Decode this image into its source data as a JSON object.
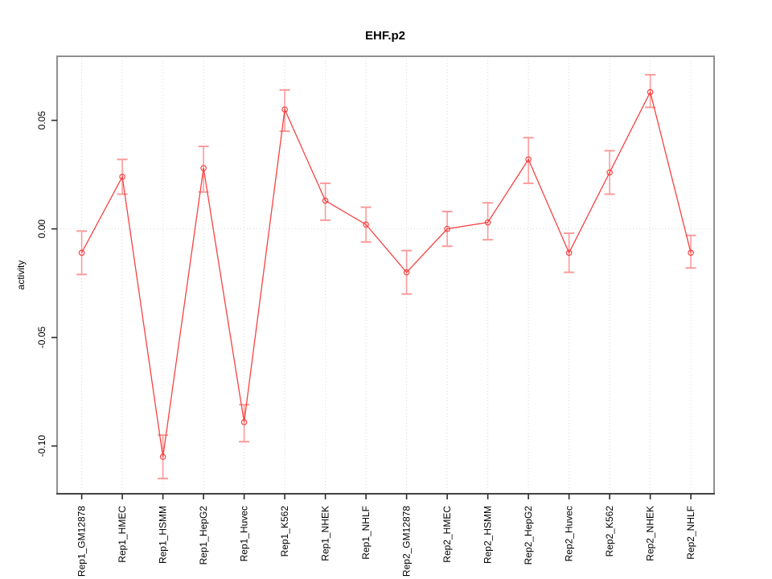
{
  "title": "EHF.p2",
  "colors": {
    "series_line": "#f54242",
    "marker_stroke": "#f54242",
    "error_bar": "#fb9b9b",
    "gridline": "#d8d8d8",
    "plot_border": "#8f8f8f",
    "axis": "#2b2b2b",
    "text": "#000000",
    "background": "#ffffff"
  },
  "chart_data": {
    "type": "line",
    "title": "EHF.p2",
    "xlabel": "",
    "ylabel": "activity",
    "legend": "none",
    "grid": "vertical dotted gridline at every category; horizontal dotted gridline at y=0 only",
    "marker": "open-circle",
    "error_bars": true,
    "ylim": [
      -0.122,
      0.0795
    ],
    "yticks": [
      {
        "value": 0.05,
        "label": "0.05"
      },
      {
        "value": 0.0,
        "label": "0.00"
      },
      {
        "value": -0.05,
        "label": "-0.05"
      },
      {
        "value": -0.1,
        "label": "-0.10"
      }
    ],
    "categories": [
      "Rep1_GM12878",
      "Rep1_HMEC",
      "Rep1_HSMM",
      "Rep1_HepG2",
      "Rep1_Huvec",
      "Rep1_K562",
      "Rep1_NHEK",
      "Rep1_NHLF",
      "Rep2_GM12878",
      "Rep2_HMEC",
      "Rep2_HSMM",
      "Rep2_HepG2",
      "Rep2_Huvec",
      "Rep2_K562",
      "Rep2_NHEK",
      "Rep2_NHLF"
    ],
    "series": [
      {
        "name": "activity",
        "values": [
          -0.011,
          0.024,
          -0.105,
          0.028,
          -0.089,
          0.055,
          0.013,
          0.002,
          -0.02,
          0.0,
          0.003,
          0.032,
          -0.011,
          0.026,
          0.063,
          -0.011
        ],
        "lower": [
          -0.021,
          0.016,
          -0.115,
          0.017,
          -0.098,
          0.045,
          0.004,
          -0.006,
          -0.03,
          -0.008,
          -0.005,
          0.021,
          -0.02,
          0.016,
          0.056,
          -0.018
        ],
        "upper": [
          -0.001,
          0.032,
          -0.095,
          0.038,
          -0.081,
          0.064,
          0.021,
          0.01,
          -0.01,
          0.008,
          0.012,
          0.042,
          -0.002,
          0.036,
          0.071,
          -0.003
        ]
      }
    ]
  }
}
